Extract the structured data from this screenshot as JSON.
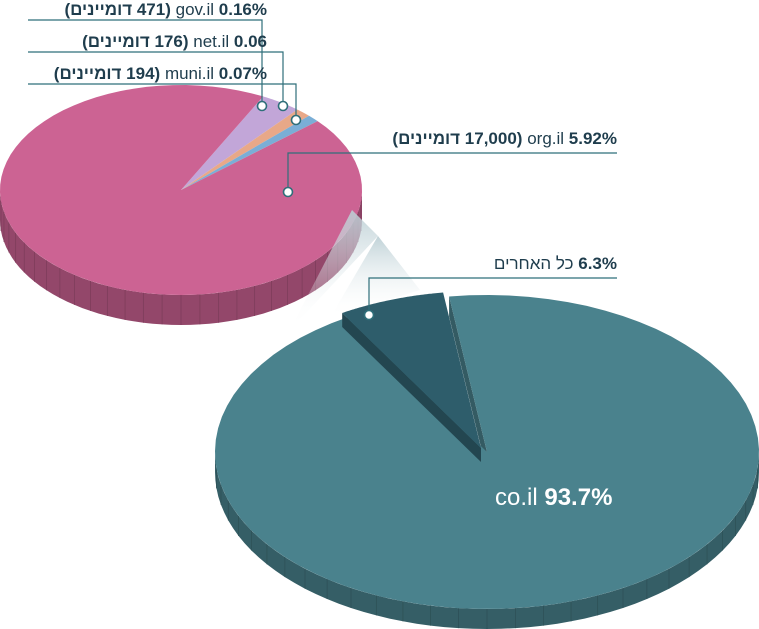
{
  "chart_data": [
    {
      "type": "pie",
      "slices": [
        {
          "label": "co.il",
          "value": 93.7
        },
        {
          "label": "כל האחרים",
          "value": 6.3
        }
      ],
      "text": {
        "co": {
          "name": "co.il",
          "pct": "93.7%"
        },
        "others": {
          "pct": "6.3%",
          "name": "כל האחרים"
        }
      },
      "colors": {
        "co": "#4a828d",
        "others": "#2e5d6b"
      }
    },
    {
      "type": "pie",
      "slices": [
        {
          "label": "org.il",
          "value": 5.92,
          "domains": 17000
        },
        {
          "label": "muni.il",
          "value": 0.07,
          "domains": 194
        },
        {
          "label": "net.il",
          "value": 0.06,
          "domains": 176
        },
        {
          "label": "gov.il",
          "value": 0.16,
          "domains": 471
        }
      ],
      "text": {
        "gov": {
          "pct": "0.16%",
          "name": "gov.il",
          "count": "(471 דומיינים)"
        },
        "net": {
          "pct": "0.06",
          "name": "net.il",
          "count": "(176 דומיינים)"
        },
        "muni": {
          "pct": "0.07%",
          "name": "muni.il",
          "count": "(194 דומיינים)"
        },
        "org": {
          "pct": "5.92%",
          "name": "org.il",
          "count": "(17,000 דומיינים)"
        }
      },
      "colors": {
        "org": "#cc6393",
        "muni": "#7aaed6",
        "net": "#e8a888",
        "gov": "#c2a6d8"
      }
    }
  ]
}
